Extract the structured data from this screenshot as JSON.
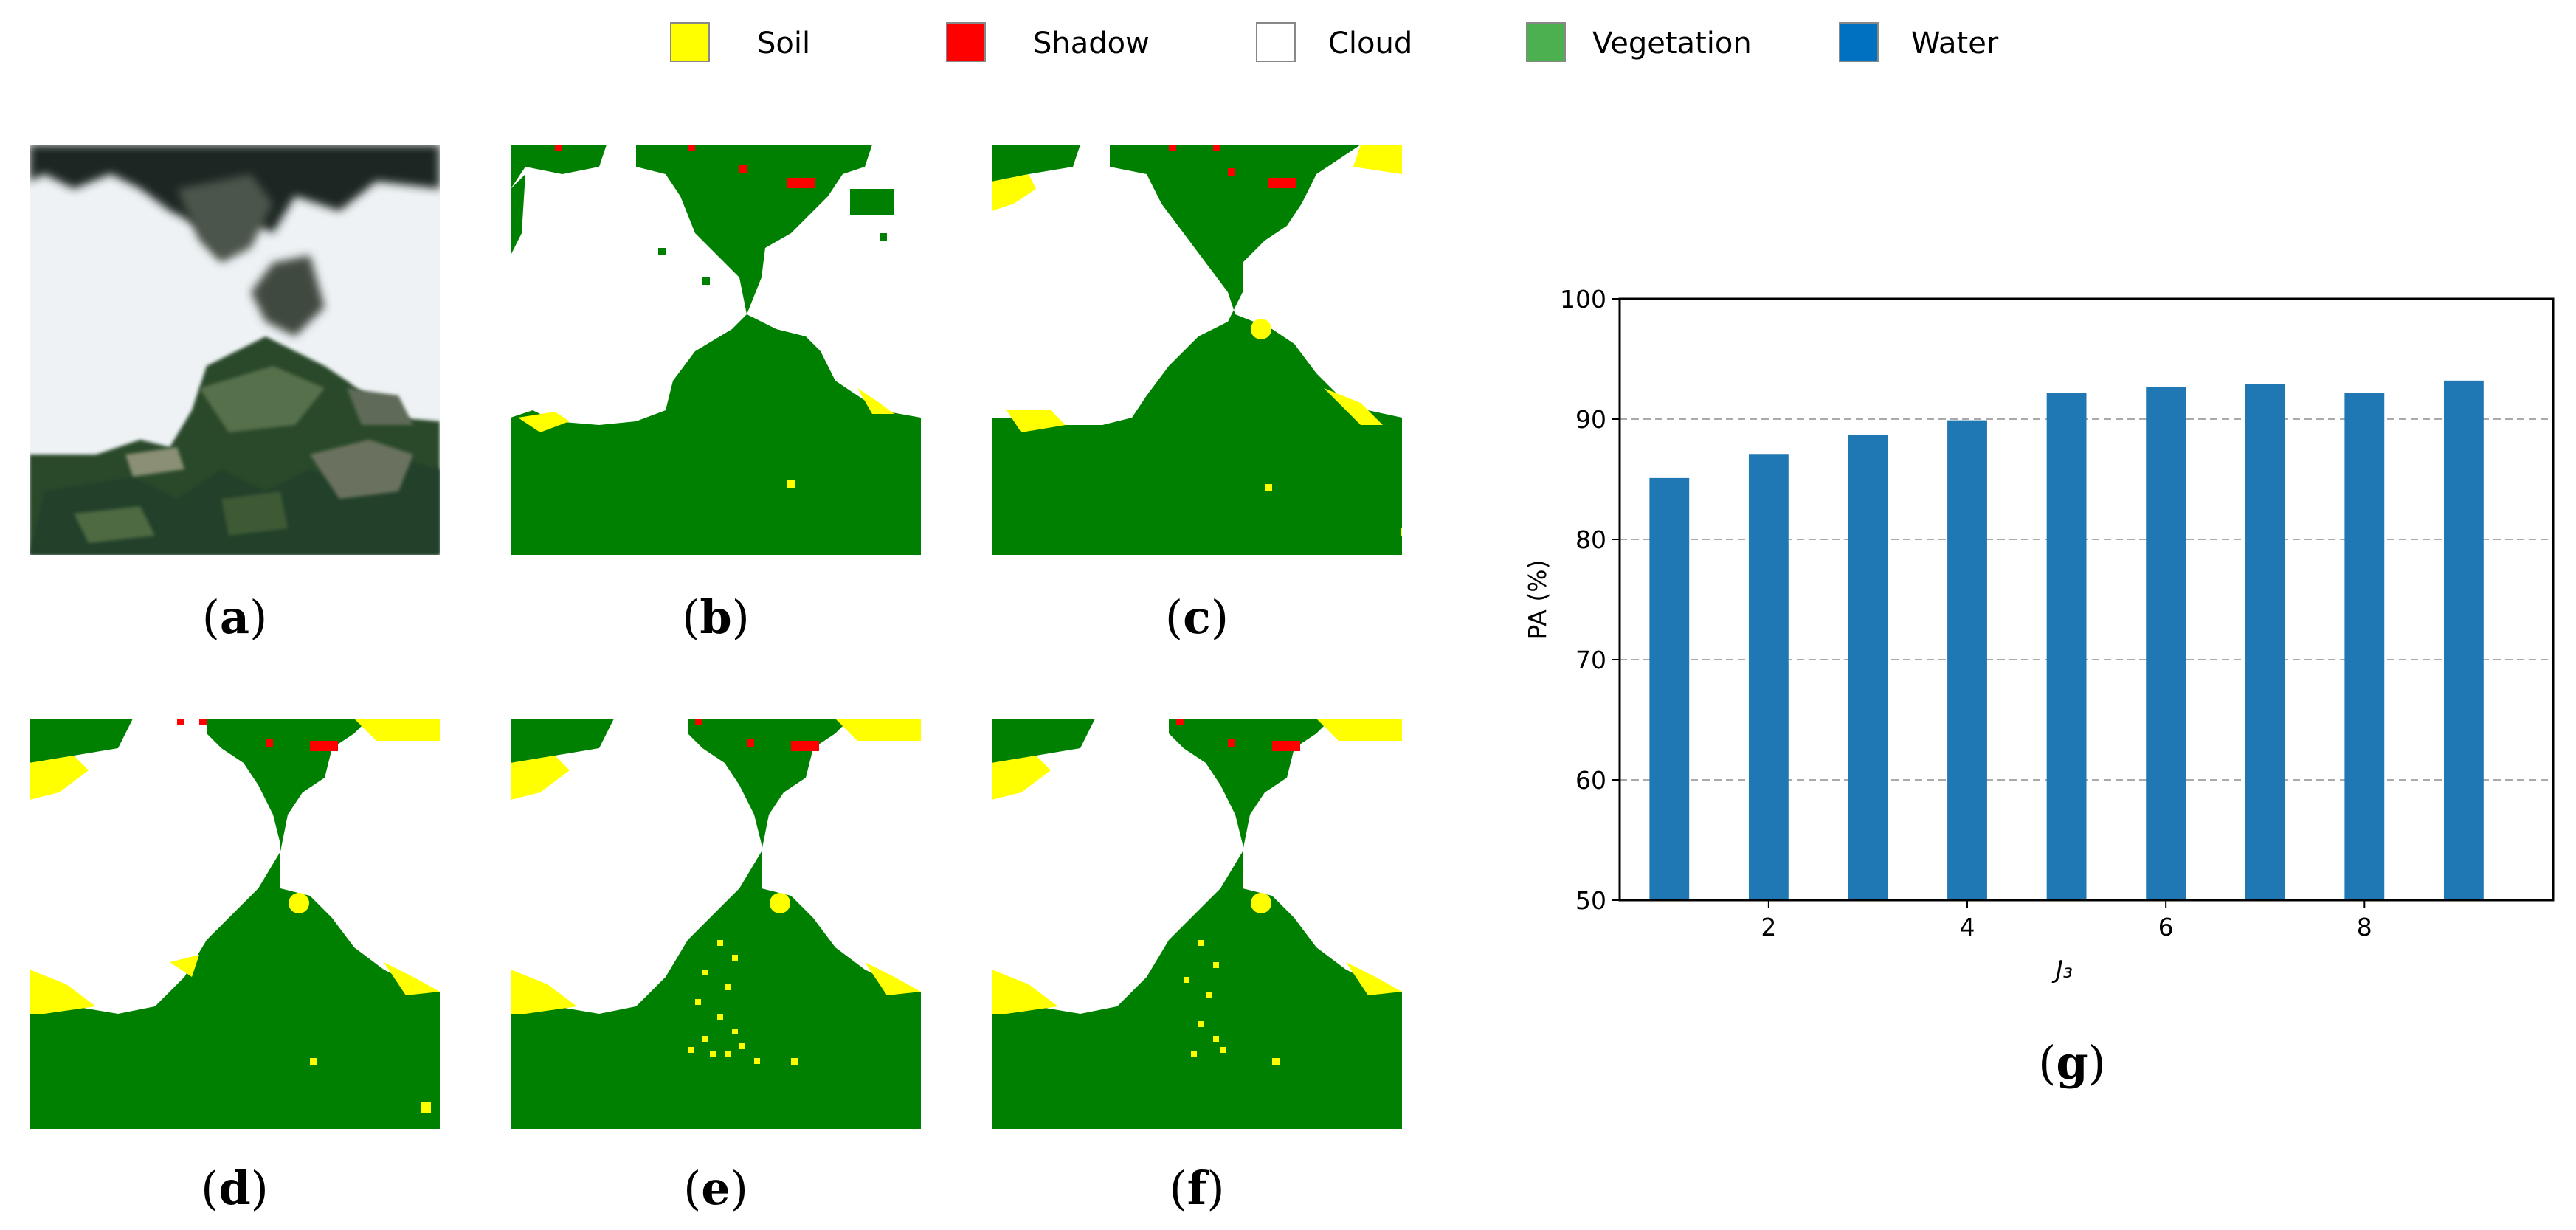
{
  "legend": {
    "items": [
      {
        "label": "Soil",
        "color": "#ffff00"
      },
      {
        "label": "Shadow",
        "color": "#ff0000"
      },
      {
        "label": "Cloud",
        "color": "#ffffff"
      },
      {
        "label": "Vegetation",
        "color": "#4caf50"
      },
      {
        "label": "Water",
        "color": "#0070c0"
      }
    ]
  },
  "panels": {
    "a": {
      "open": "(",
      "letter": "a",
      "close": ")"
    },
    "b": {
      "open": "(",
      "letter": "b",
      "close": ")"
    },
    "c": {
      "open": "(",
      "letter": "c",
      "close": ")"
    },
    "d": {
      "open": "(",
      "letter": "d",
      "close": ")"
    },
    "e": {
      "open": "(",
      "letter": "e",
      "close": ")"
    },
    "f": {
      "open": "(",
      "letter": "f",
      "close": ")"
    },
    "g": {
      "open": "(",
      "letter": "g",
      "close": ")"
    }
  },
  "colors": {
    "vegetation_map": "#008000",
    "soil": "#ffff00",
    "shadow": "#ff0000",
    "cloud": "#ffffff",
    "bar": "#1f77b4",
    "grid": "#aaaaaa"
  },
  "chart_data": {
    "type": "bar",
    "x": [
      1,
      2,
      3,
      4,
      5,
      6,
      7,
      8,
      9
    ],
    "values": [
      85.1,
      87.1,
      88.7,
      89.9,
      92.2,
      92.7,
      92.9,
      92.2,
      93.2
    ],
    "xlabel": "J₃",
    "ylabel": "PA (%)",
    "ylim": [
      50,
      100
    ],
    "yticks": [
      50,
      60,
      70,
      80,
      90,
      100
    ],
    "xticks": [
      2,
      4,
      6,
      8
    ],
    "grid": "y-dashed",
    "series_name": "PA"
  }
}
